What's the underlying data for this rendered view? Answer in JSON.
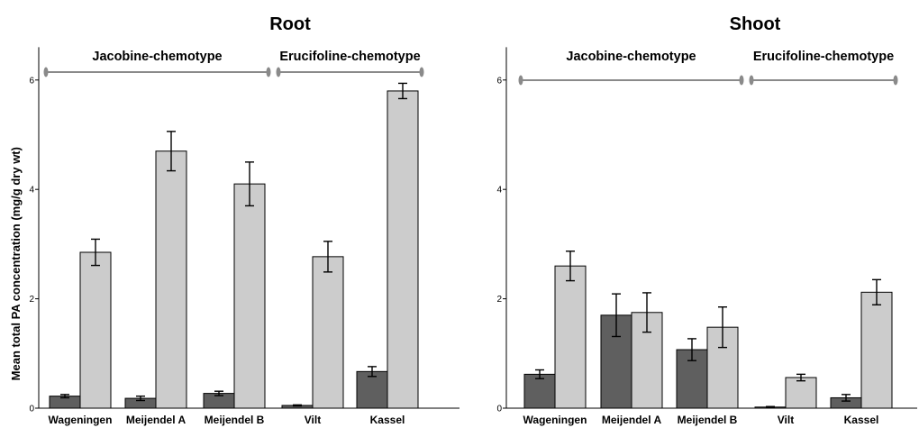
{
  "chart_data": [
    {
      "type": "bar",
      "title": "Root",
      "ylabel": "Mean total PA concentration (mg/g dry wt)",
      "xlabel": "",
      "ylim": [
        0,
        6.6
      ],
      "yticks": [
        0,
        2,
        4,
        6
      ],
      "categories": [
        "Wageningen",
        "Meijendel A",
        "Meijendel B",
        "Vilt",
        "Kassel"
      ],
      "groups": [
        {
          "label": "Jacobine-chemotype",
          "from": 0,
          "to": 2
        },
        {
          "label": "Erucifoline-chemotype",
          "from": 3,
          "to": 4
        }
      ],
      "series": [
        {
          "color": "#5f5f5f",
          "values": [
            0.22,
            0.18,
            0.27,
            0.05,
            0.67
          ],
          "errors": [
            0.03,
            0.04,
            0.04,
            0.01,
            0.09
          ]
        },
        {
          "color": "#cccccc",
          "values": [
            2.85,
            4.7,
            4.1,
            2.77,
            5.8
          ],
          "errors": [
            0.24,
            0.36,
            0.4,
            0.28,
            0.14
          ]
        }
      ],
      "grid": false,
      "legend": "none"
    },
    {
      "type": "bar",
      "title": "Shoot",
      "ylabel": "",
      "xlabel": "",
      "ylim": [
        0,
        6.6
      ],
      "yticks": [
        0,
        2,
        4,
        6
      ],
      "categories": [
        "Wageningen",
        "Meijendel A",
        "Meijendel B",
        "Vilt",
        "Kassel"
      ],
      "groups": [
        {
          "label": "Jacobine-chemotype",
          "from": 0,
          "to": 2
        },
        {
          "label": "Erucifoline-chemotype",
          "from": 3,
          "to": 4
        }
      ],
      "series": [
        {
          "color": "#5f5f5f",
          "values": [
            0.62,
            1.7,
            1.07,
            0.02,
            0.19
          ],
          "errors": [
            0.08,
            0.39,
            0.2,
            0.01,
            0.06
          ]
        },
        {
          "color": "#cccccc",
          "values": [
            2.6,
            1.75,
            1.48,
            0.56,
            2.12
          ],
          "errors": [
            0.27,
            0.36,
            0.37,
            0.06,
            0.23
          ]
        }
      ],
      "grid": false,
      "legend": "none"
    }
  ]
}
